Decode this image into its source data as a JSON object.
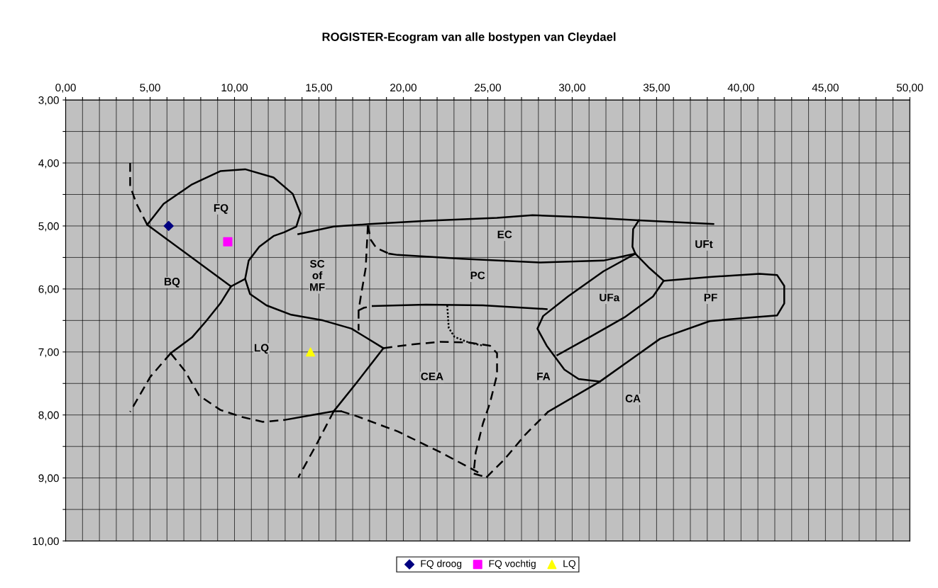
{
  "chart_data": {
    "type": "scatter",
    "title": "ROGISTER-Ecogram van alle bostypen van Cleydael",
    "xlim": [
      0,
      50
    ],
    "ylim": [
      10,
      3
    ],
    "grid": true,
    "legend": "bottom",
    "xticks": [
      {
        "value": 0,
        "label": "0,00"
      },
      {
        "value": 1,
        "label": null
      },
      {
        "value": 2,
        "label": null
      },
      {
        "value": 3,
        "label": null
      },
      {
        "value": 4,
        "label": null
      },
      {
        "value": 5,
        "label": "5,00"
      },
      {
        "value": 6,
        "label": null
      },
      {
        "value": 7,
        "label": null
      },
      {
        "value": 8,
        "label": null
      },
      {
        "value": 9,
        "label": null
      },
      {
        "value": 10,
        "label": "10,00"
      },
      {
        "value": 11,
        "label": null
      },
      {
        "value": 12,
        "label": null
      },
      {
        "value": 13,
        "label": null
      },
      {
        "value": 14,
        "label": null
      },
      {
        "value": 15,
        "label": "15,00"
      },
      {
        "value": 16,
        "label": null
      },
      {
        "value": 17,
        "label": null
      },
      {
        "value": 18,
        "label": null
      },
      {
        "value": 19,
        "label": null
      },
      {
        "value": 20,
        "label": "20,00"
      },
      {
        "value": 21,
        "label": null
      },
      {
        "value": 22,
        "label": null
      },
      {
        "value": 23,
        "label": null
      },
      {
        "value": 24,
        "label": null
      },
      {
        "value": 25,
        "label": "25,00"
      },
      {
        "value": 26,
        "label": null
      },
      {
        "value": 27,
        "label": null
      },
      {
        "value": 28,
        "label": null
      },
      {
        "value": 29,
        "label": null
      },
      {
        "value": 30,
        "label": "30,00"
      },
      {
        "value": 31,
        "label": null
      },
      {
        "value": 32,
        "label": null
      },
      {
        "value": 33,
        "label": null
      },
      {
        "value": 34,
        "label": null
      },
      {
        "value": 35,
        "label": "35,00"
      },
      {
        "value": 36,
        "label": null
      },
      {
        "value": 37,
        "label": null
      },
      {
        "value": 38,
        "label": null
      },
      {
        "value": 39,
        "label": null
      },
      {
        "value": 40,
        "label": "40,00"
      },
      {
        "value": 41,
        "label": null
      },
      {
        "value": 42,
        "label": null
      },
      {
        "value": 43,
        "label": null
      },
      {
        "value": 44,
        "label": null
      },
      {
        "value": 45,
        "label": "45,00"
      },
      {
        "value": 46,
        "label": null
      },
      {
        "value": 47,
        "label": null
      },
      {
        "value": 48,
        "label": null
      },
      {
        "value": 49,
        "label": null
      },
      {
        "value": 50,
        "label": "50,00"
      }
    ],
    "yticks": [
      {
        "value": 3,
        "label": "3,00"
      },
      {
        "value": 3.5,
        "label": null
      },
      {
        "value": 4,
        "label": "4,00"
      },
      {
        "value": 4.5,
        "label": null
      },
      {
        "value": 5,
        "label": "5,00"
      },
      {
        "value": 5.5,
        "label": null
      },
      {
        "value": 6,
        "label": "6,00"
      },
      {
        "value": 6.5,
        "label": null
      },
      {
        "value": 7,
        "label": "7,00"
      },
      {
        "value": 7.5,
        "label": null
      },
      {
        "value": 8,
        "label": "8,00"
      },
      {
        "value": 8.5,
        "label": null
      },
      {
        "value": 9,
        "label": "9,00"
      },
      {
        "value": 9.5,
        "label": null
      },
      {
        "value": 10,
        "label": "10,00"
      }
    ],
    "series": [
      {
        "type": "line",
        "color": "#000000",
        "line_style": "solid",
        "x": [
          4.83,
          5.8,
          7.48,
          9.16,
          10.63,
          12.31,
          13.45,
          13.91,
          13.66,
          12.94,
          12.31,
          11.47,
          10.84,
          10.63,
          10.92,
          11.89,
          13.36,
          15.25,
          16.93,
          18.82
        ],
        "values": [
          4.98,
          4.65,
          4.34,
          4.13,
          4.1,
          4.23,
          4.49,
          4.8,
          5.01,
          5.1,
          5.16,
          5.33,
          5.55,
          5.84,
          6.08,
          6.26,
          6.41,
          6.5,
          6.63,
          6.94
        ]
      },
      {
        "type": "line",
        "color": "#000000",
        "line_style": "solid",
        "x": [
          13.78,
          15.88,
          17.98,
          21.34,
          25.55,
          27.65,
          30.59,
          33.95,
          38.36
        ],
        "values": [
          5.13,
          5.01,
          4.97,
          4.92,
          4.87,
          4.83,
          4.86,
          4.91,
          4.97
        ]
      },
      {
        "type": "line",
        "color": "#000000",
        "line_style": "solid",
        "x": [
          33.95,
          33.61,
          33.57,
          33.74,
          34.58,
          35.42
        ],
        "values": [
          4.91,
          5.05,
          5.33,
          5.44,
          5.67,
          5.87
        ]
      },
      {
        "type": "line",
        "color": "#000000",
        "line_style": "dashed",
        "x": [
          17.9,
          18.07,
          18.4,
          19.16
        ],
        "values": [
          4.99,
          5.22,
          5.35,
          5.44
        ]
      },
      {
        "type": "line",
        "color": "#000000",
        "line_style": "solid",
        "x": [
          19.16,
          19.66,
          23.45,
          28.07,
          31.85,
          33.74
        ],
        "values": [
          5.44,
          5.46,
          5.52,
          5.58,
          5.55,
          5.44
        ]
      },
      {
        "type": "line",
        "color": "#000000",
        "line_style": "dashed",
        "x": [
          17.9,
          17.77,
          17.48,
          17.35,
          17.35
        ],
        "values": [
          4.99,
          5.67,
          6.12,
          6.34,
          6.66
        ]
      },
      {
        "type": "line",
        "color": "#000000",
        "line_style": "dashed",
        "x": [
          17.35,
          17.65,
          18.19
        ],
        "values": [
          6.34,
          6.3,
          6.27
        ]
      },
      {
        "type": "line",
        "color": "#000000",
        "line_style": "solid",
        "x": [
          18.19,
          21.34,
          24.71,
          28.49
        ],
        "values": [
          6.27,
          6.25,
          6.26,
          6.32
        ]
      },
      {
        "type": "line",
        "color": "#000000",
        "line_style": "dotted",
        "x": [
          22.6,
          22.69,
          23.03,
          23.87,
          24.71
        ],
        "values": [
          6.26,
          6.62,
          6.76,
          6.85,
          6.9
        ]
      },
      {
        "type": "line",
        "color": "#000000",
        "line_style": "dashed",
        "x": [
          18.82,
          20.5,
          22.18,
          23.87,
          25.13,
          25.55,
          25.55,
          25.13,
          24.71,
          24.29,
          24.16,
          24.92
        ],
        "values": [
          6.94,
          6.88,
          6.84,
          6.85,
          6.9,
          7.02,
          7.36,
          7.81,
          8.14,
          8.59,
          8.93,
          8.99
        ]
      },
      {
        "type": "line",
        "color": "#000000",
        "line_style": "solid",
        "x": [
          4.83,
          9.79
        ],
        "values": [
          4.98,
          5.96
        ]
      },
      {
        "type": "line",
        "color": "#000000",
        "line_style": "solid",
        "x": [
          9.79,
          9.16,
          8.32,
          7.48,
          6.22
        ],
        "values": [
          5.96,
          6.23,
          6.51,
          6.77,
          7.02
        ]
      },
      {
        "type": "line",
        "color": "#000000",
        "line_style": "dashed",
        "x": [
          6.22,
          5.0,
          3.82
        ],
        "values": [
          7.02,
          7.4,
          7.95
        ]
      },
      {
        "type": "line",
        "color": "#000000",
        "line_style": "dashed",
        "x": [
          6.22,
          7.06,
          7.9,
          9.16,
          10.42,
          11.68,
          12.94
        ],
        "values": [
          7.02,
          7.3,
          7.69,
          7.92,
          8.03,
          8.11,
          8.08
        ]
      },
      {
        "type": "line",
        "color": "#000000",
        "line_style": "solid",
        "x": [
          12.94,
          14.62,
          15.88,
          16.3
        ],
        "values": [
          8.08,
          8.0,
          7.94,
          7.94
        ]
      },
      {
        "type": "line",
        "color": "#000000",
        "line_style": "dashed",
        "x": [
          16.3,
          17.14,
          19.66,
          22.18,
          24.71
        ],
        "values": [
          7.94,
          8.01,
          8.26,
          8.59,
          8.95
        ]
      },
      {
        "type": "line",
        "color": "#000000",
        "line_style": "solid",
        "x": [
          18.82,
          17.14,
          15.88
        ],
        "values": [
          6.94,
          7.52,
          7.94
        ]
      },
      {
        "type": "line",
        "color": "#000000",
        "line_style": "dashed",
        "x": [
          15.88,
          14.83,
          13.78
        ],
        "values": [
          7.94,
          8.48,
          8.99
        ]
      },
      {
        "type": "line",
        "color": "#000000",
        "line_style": "solid",
        "x": [
          9.79,
          10.63
        ],
        "values": [
          5.96,
          5.84
        ]
      },
      {
        "type": "line",
        "color": "#000000",
        "line_style": "dashed",
        "x": [
          3.82,
          3.82,
          4.2,
          4.83
        ],
        "values": [
          4.0,
          4.37,
          4.65,
          4.98
        ]
      },
      {
        "type": "line",
        "color": "#000000",
        "line_style": "dashed",
        "x": [
          24.92,
          25.97,
          27.23,
          28.57
        ],
        "values": [
          8.99,
          8.71,
          8.31,
          7.95
        ]
      },
      {
        "type": "line",
        "color": "#000000",
        "line_style": "solid",
        "x": [
          28.57,
          31.64,
          35.21,
          38.15,
          40.67,
          42.14,
          42.56,
          42.56,
          42.14,
          41.09,
          38.15,
          35.42
        ],
        "values": [
          7.95,
          7.47,
          6.79,
          6.51,
          6.45,
          6.42,
          6.23,
          5.95,
          5.78,
          5.76,
          5.81,
          5.87
        ]
      },
      {
        "type": "line",
        "color": "#000000",
        "line_style": "solid",
        "x": [
          33.74,
          31.85,
          29.75,
          28.28,
          27.94,
          28.49,
          29.54,
          30.38,
          31.64
        ],
        "values": [
          5.44,
          5.72,
          6.12,
          6.43,
          6.63,
          6.9,
          7.28,
          7.43,
          7.47
        ]
      },
      {
        "type": "line",
        "color": "#000000",
        "line_style": "solid",
        "x": [
          29.12,
          31.0,
          33.1,
          34.79,
          35.42
        ],
        "values": [
          7.05,
          6.77,
          6.45,
          6.12,
          5.87
        ]
      },
      {
        "type": "scatter",
        "name": "FQ droog",
        "color": "#000080",
        "marker": "diamond",
        "x": [
          6.1
        ],
        "values": [
          5.0
        ]
      },
      {
        "type": "scatter",
        "name": "FQ vochtig",
        "color": "#ff00ff",
        "marker": "square",
        "x": [
          9.6
        ],
        "values": [
          5.25
        ]
      },
      {
        "type": "scatter",
        "name": "LQ",
        "color": "#ffff00",
        "marker": "triangle",
        "x": [
          14.5
        ],
        "values": [
          7.0
        ]
      }
    ],
    "annotations": [
      "FQ",
      "BQ",
      "SC\nof\nMF",
      "EC",
      "UFt",
      "PC",
      "UFa",
      "PF",
      "LQ",
      "CEA",
      "FA",
      "CA"
    ]
  }
}
